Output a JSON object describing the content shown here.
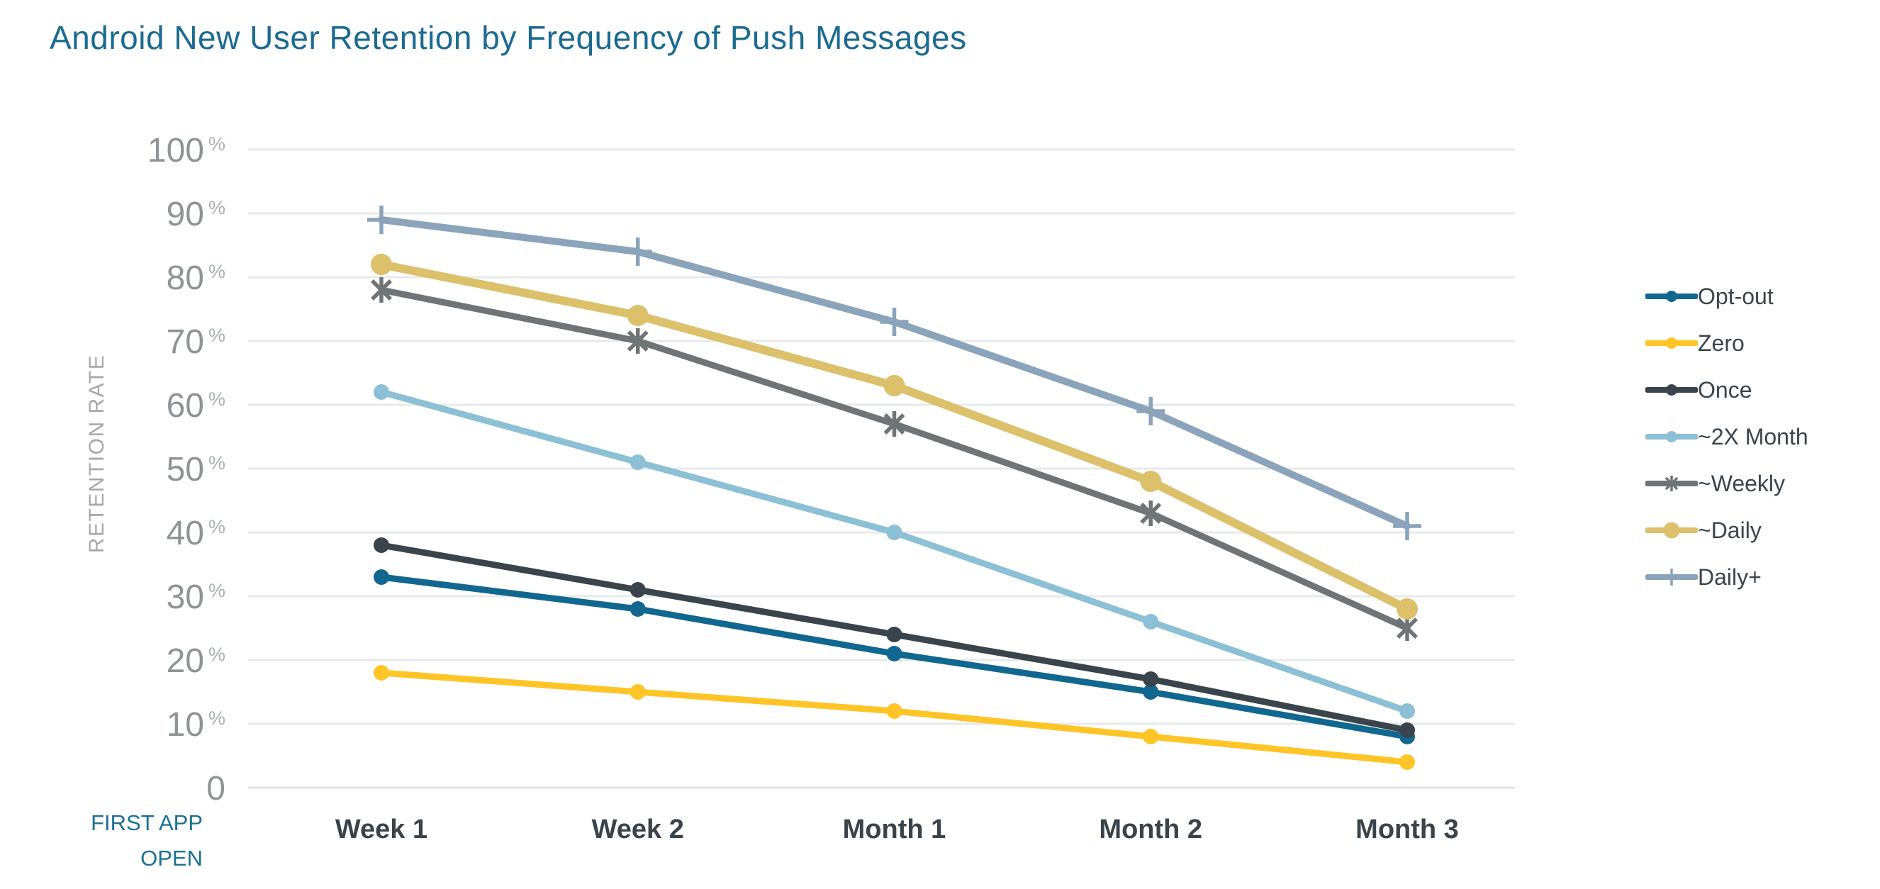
{
  "page": {
    "title": "Android New User Retention by Frequency of Push Messages"
  },
  "chart_data": {
    "type": "line",
    "title": "Android New User Retention by Frequency of Push Messages",
    "ylabel": "RETENTION RATE",
    "xlabel": "",
    "origin_label_lines": [
      "FIRST APP",
      "OPEN"
    ],
    "categories": [
      "Week 1",
      "Week 2",
      "Month 1",
      "Month 2",
      "Month 3"
    ],
    "ylim": [
      0,
      100
    ],
    "yticks": [
      0,
      10,
      20,
      30,
      40,
      50,
      60,
      70,
      80,
      90,
      100
    ],
    "ytick_suffix": "%",
    "grid": true,
    "legend_position": "right",
    "series": [
      {
        "name": "Opt-out",
        "color": "#10678f",
        "marker": "circle",
        "values": [
          33,
          28,
          21,
          15,
          8
        ]
      },
      {
        "name": "Zero",
        "color": "#ffc426",
        "marker": "circle",
        "values": [
          18,
          15,
          12,
          8,
          4
        ]
      },
      {
        "name": "Once",
        "color": "#3a444c",
        "marker": "circle",
        "values": [
          38,
          31,
          24,
          17,
          9
        ]
      },
      {
        "name": "~2X Month",
        "color": "#8bc0d6",
        "marker": "circle",
        "values": [
          62,
          51,
          40,
          26,
          12
        ]
      },
      {
        "name": "~Weekly",
        "color": "#6f7477",
        "marker": "asterisk",
        "values": [
          78,
          70,
          57,
          43,
          25
        ]
      },
      {
        "name": "~Daily",
        "color": "#dcc06a",
        "marker": "big-circle",
        "values": [
          82,
          74,
          63,
          48,
          28
        ]
      },
      {
        "name": "Daily+",
        "color": "#8aa4bc",
        "marker": "plus",
        "values": [
          89,
          84,
          73,
          59,
          41
        ]
      }
    ],
    "colors": {
      "title_text": "#1a6b90",
      "axis_tick_text": "#8f9496",
      "tick_suffix_text": "#abb0b2",
      "x_tick_text": "#39434c",
      "y_axis_title_text": "#a6a8a9",
      "origin_label_text": "#1a7194",
      "legend_text": "#3a444c",
      "gridline": "#e7eaeb",
      "baseline": "#dfe3e4"
    }
  }
}
